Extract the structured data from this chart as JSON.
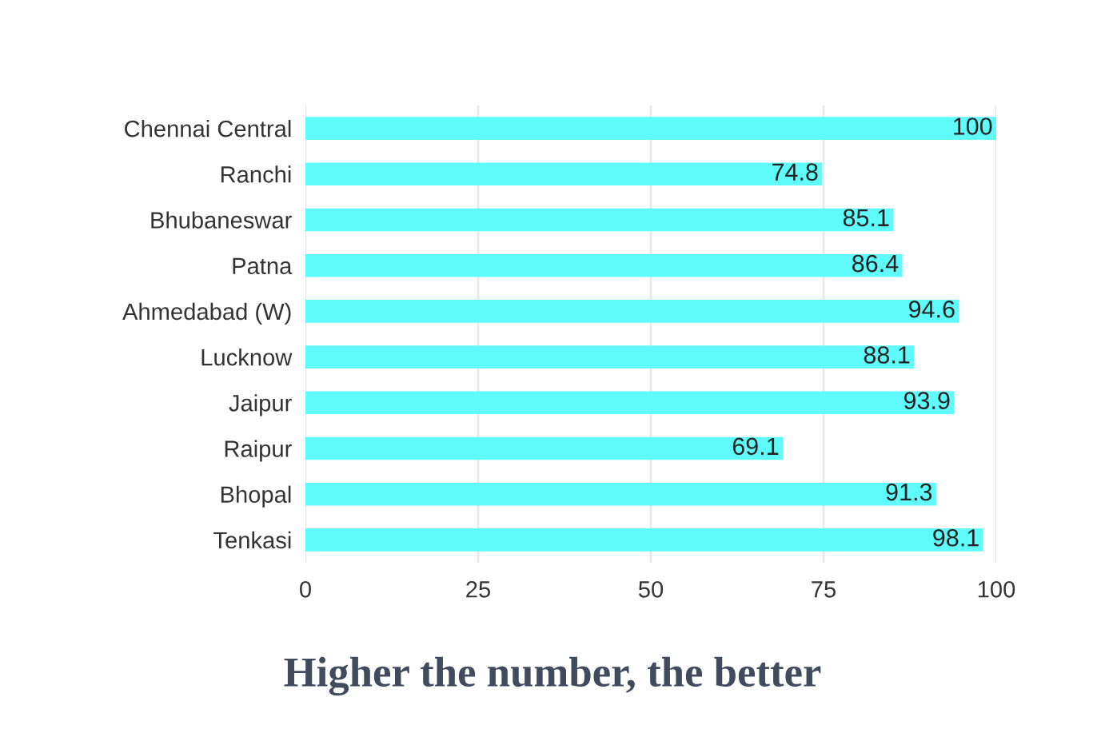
{
  "chart_data": {
    "type": "bar",
    "orientation": "horizontal",
    "title": "Higher the number, the better",
    "categories": [
      "Chennai Central",
      "Ranchi",
      "Bhubaneswar",
      "Patna",
      "Ahmedabad (W)",
      "Lucknow",
      "Jaipur",
      "Raipur",
      "Bhopal",
      "Tenkasi"
    ],
    "values": [
      100,
      74.8,
      85.1,
      86.4,
      94.6,
      88.1,
      93.9,
      69.1,
      91.3,
      98.1
    ],
    "color": "#5ffbfb",
    "xlim": [
      0,
      100
    ],
    "xticks": [
      0,
      25,
      50,
      75,
      100
    ],
    "grid": "x",
    "data_labels": true
  }
}
